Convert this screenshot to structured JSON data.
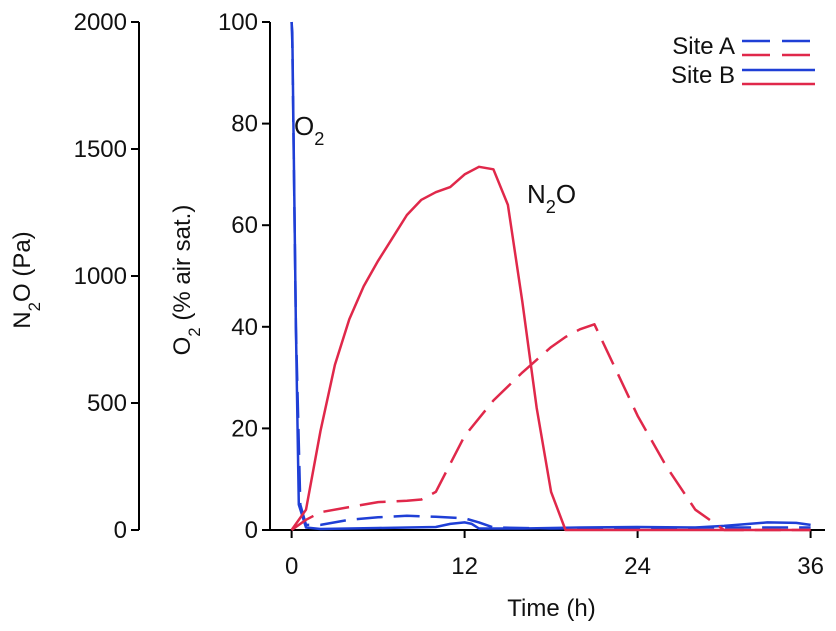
{
  "chart_data": {
    "type": "line",
    "x_axis": {
      "label": "Time (h)",
      "range": [
        -1.5,
        37
      ],
      "ticks": [
        0,
        12,
        24,
        36
      ],
      "tick_labels": [
        "0",
        "12",
        "24",
        "36"
      ]
    },
    "y_axis_o2": {
      "label_parts": [
        "O",
        "2",
        " (% air sat.)"
      ],
      "range": [
        0,
        100
      ],
      "ticks": [
        0,
        20,
        40,
        60,
        80,
        100
      ],
      "tick_labels": [
        "0",
        "20",
        "40",
        "60",
        "80",
        "100"
      ]
    },
    "y_axis_n2o": {
      "label_parts": [
        "N",
        "2",
        "O (Pa)"
      ],
      "range": [
        0,
        2000
      ],
      "ticks": [
        0,
        500,
        1000,
        1500,
        2000
      ],
      "tick_labels": [
        "0",
        "500",
        "1000",
        "1500",
        "2000"
      ]
    },
    "annotations": {
      "o2": {
        "main": "O",
        "sub": "2",
        "rest": ""
      },
      "n2o": {
        "main": "N",
        "sub": "2",
        "rest": "O"
      }
    },
    "legend": {
      "position": "top-right",
      "entries": [
        {
          "label": "Site A",
          "dash": true
        },
        {
          "label": "Site B",
          "dash": false
        }
      ]
    },
    "colors": {
      "o2": "#1f3fd6",
      "n2o": "#e0284a"
    },
    "series": [
      {
        "name": "Site A",
        "variable": "O2",
        "axis": "o2",
        "dash": true,
        "x": [
          0.0,
          0.05,
          0.3,
          0.6,
          1,
          2,
          4,
          6,
          8,
          10,
          12,
          13,
          14,
          18,
          24,
          30,
          36
        ],
        "y": [
          100,
          96,
          40,
          5,
          1,
          1,
          2,
          2.5,
          2.8,
          2.6,
          2.3,
          1.5,
          0.5,
          0.3,
          0.4,
          0.5,
          0.5
        ]
      },
      {
        "name": "Site B",
        "variable": "O2",
        "axis": "o2",
        "dash": false,
        "x": [
          0.0,
          0.05,
          0.3,
          0.5,
          1,
          2,
          6,
          10,
          11,
          12,
          12.5,
          13,
          16,
          20,
          24,
          28,
          30,
          33,
          35,
          36
        ],
        "y": [
          100,
          98,
          40,
          5,
          0.5,
          0.2,
          0.4,
          0.6,
          1.2,
          1.5,
          1.2,
          0.3,
          0.3,
          0.5,
          0.6,
          0.5,
          0.8,
          1.5,
          1.4,
          1.0
        ]
      },
      {
        "name": "Site A",
        "variable": "N2O",
        "axis": "n2o",
        "dash": true,
        "x": [
          0,
          1,
          2,
          4,
          6,
          8,
          9,
          10,
          12,
          14,
          16,
          17,
          18,
          19,
          20,
          21,
          22,
          24,
          26,
          28,
          30,
          32,
          34,
          36
        ],
        "y": [
          0,
          40,
          70,
          90,
          110,
          115,
          120,
          150,
          370,
          510,
          620,
          670,
          720,
          760,
          790,
          810,
          690,
          450,
          250,
          80,
          0,
          0,
          0,
          0
        ]
      },
      {
        "name": "Site B",
        "variable": "N2O",
        "axis": "n2o",
        "dash": false,
        "x": [
          0,
          1,
          2,
          3,
          4,
          5,
          6,
          7,
          8,
          9,
          10,
          11,
          12,
          13,
          14,
          15,
          16,
          17,
          18,
          19,
          24,
          30,
          36
        ],
        "y": [
          0,
          80,
          390,
          650,
          830,
          960,
          1060,
          1150,
          1240,
          1300,
          1330,
          1350,
          1400,
          1430,
          1420,
          1280,
          900,
          480,
          150,
          0,
          0,
          0,
          0
        ]
      }
    ]
  }
}
